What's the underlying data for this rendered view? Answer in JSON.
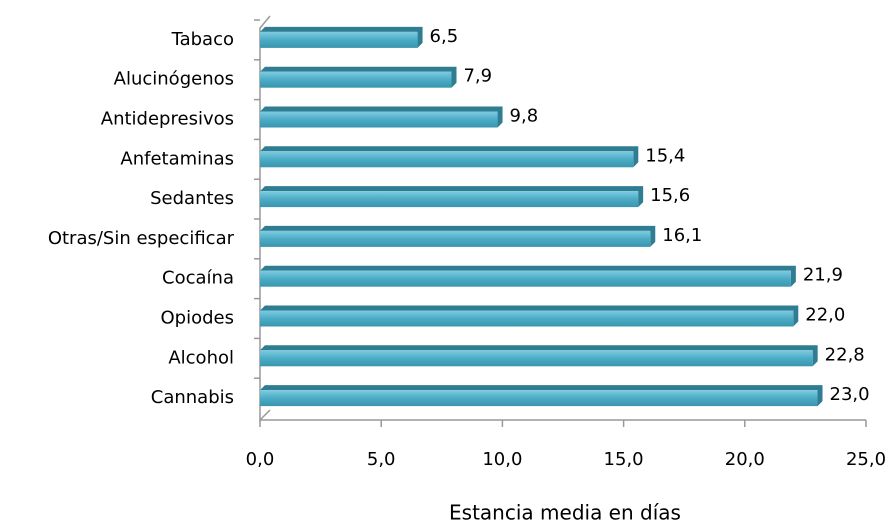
{
  "chart_data": {
    "type": "bar",
    "orientation": "horizontal",
    "categories": [
      "Tabaco",
      "Alucinógenos",
      "Antidepresivos",
      "Anfetaminas",
      "Sedantes",
      "Otras/Sin especificar",
      "Cocaína",
      "Opiodes",
      "Alcohol",
      "Cannabis"
    ],
    "values": [
      6.5,
      7.9,
      9.8,
      15.4,
      15.6,
      16.1,
      21.9,
      22.0,
      22.8,
      23.0
    ],
    "value_labels": [
      "6,5",
      "7,9",
      "9,8",
      "15,4",
      "15,6",
      "16,1",
      "21,9",
      "22,0",
      "22,8",
      "23,0"
    ],
    "color": "#4bacc6",
    "xlim": [
      0,
      25
    ],
    "xticks": [
      {
        "value": 0,
        "label": "0,0"
      },
      {
        "value": 5,
        "label": "5,0"
      },
      {
        "value": 10,
        "label": "10,0"
      },
      {
        "value": 15,
        "label": "15,0"
      },
      {
        "value": 20,
        "label": "20,0"
      },
      {
        "value": 25,
        "label": "25,0"
      }
    ],
    "xlabel": "Estancia media en días"
  }
}
